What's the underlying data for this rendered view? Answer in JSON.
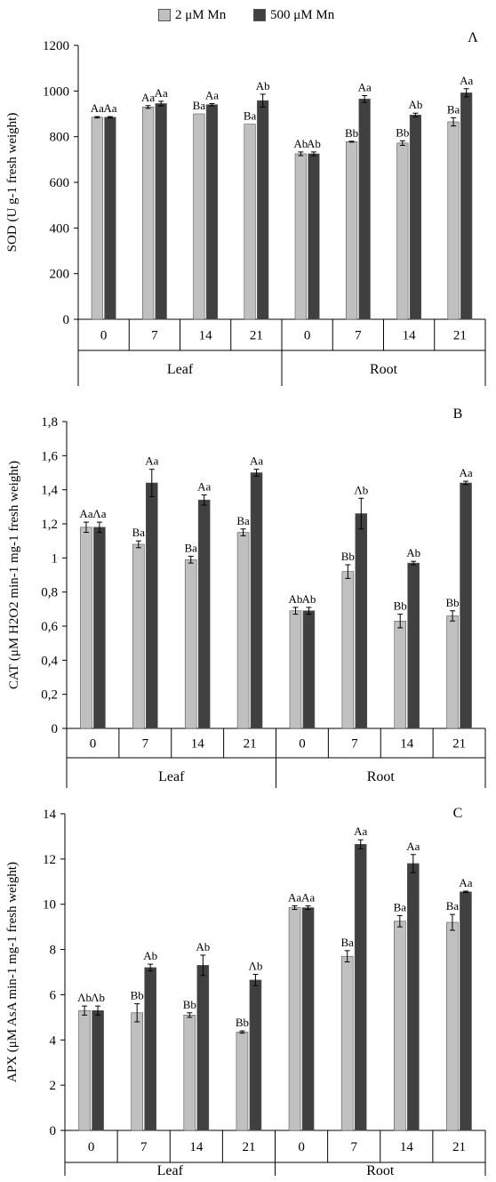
{
  "legend": [
    {
      "label": "2 μM Mn",
      "color": "#c0c0c0"
    },
    {
      "label": "500 μM Mn",
      "color": "#404040"
    }
  ],
  "colors": {
    "low": "#c0c0c0",
    "high": "#404040",
    "axis": "#000000"
  },
  "chart_data": [
    {
      "type": "bar",
      "panel": "Λ",
      "ylabel": "SOD (U g-1 fresh weight)",
      "ylim": [
        0,
        1200
      ],
      "yticks": [
        "0",
        "200",
        "400",
        "600",
        "800",
        "1000",
        "1200"
      ],
      "tick_values": [
        0,
        200,
        400,
        600,
        800,
        1000,
        1200
      ],
      "categories": [
        "0",
        "7",
        "14",
        "21",
        "0",
        "7",
        "14",
        "21"
      ],
      "groups": [
        "Leaf",
        "Root"
      ],
      "series": [
        {
          "name": "2 μM Mn",
          "values": [
            885,
            930,
            900,
            855,
            725,
            778,
            772,
            865
          ],
          "errors": [
            3,
            6,
            0,
            0,
            8,
            2,
            10,
            18
          ],
          "labels": [
            "Aa",
            "Aa",
            "Ba",
            "Ba",
            "Ab",
            "Bb",
            "Bb",
            "Ba"
          ]
        },
        {
          "name": "500 μM Mn",
          "values": [
            885,
            945,
            940,
            958,
            725,
            965,
            895,
            992
          ],
          "errors": [
            3,
            10,
            5,
            28,
            8,
            15,
            8,
            18
          ],
          "labels": [
            "Aa",
            "Aa",
            "Aa",
            "Ab",
            "Ab",
            "Aa",
            "Ab",
            "Aa"
          ]
        }
      ]
    },
    {
      "type": "bar",
      "panel": "B",
      "ylabel": "CAT (μM H2O2 min-1 mg-1 fresh weight)",
      "ylim": [
        0,
        1.8
      ],
      "yticks": [
        "0",
        "0,2",
        "0,4",
        "0,6",
        "0,8",
        "1",
        "1,2",
        "1,4",
        "1,6",
        "1,8"
      ],
      "tick_values": [
        0,
        0.2,
        0.4,
        0.6,
        0.8,
        1,
        1.2,
        1.4,
        1.6,
        1.8
      ],
      "categories": [
        "0",
        "7",
        "14",
        "21",
        "0",
        "7",
        "14",
        "21"
      ],
      "groups": [
        "Leaf",
        "Root"
      ],
      "series": [
        {
          "name": "2 μM Mn",
          "values": [
            1.18,
            1.08,
            0.99,
            1.15,
            0.69,
            0.92,
            0.63,
            0.66
          ],
          "errors": [
            0.03,
            0.02,
            0.02,
            0.02,
            0.02,
            0.04,
            0.04,
            0.03
          ],
          "labels": [
            "Aa",
            "Ba",
            "Ba",
            "Ba",
            "Ab",
            "Bb",
            "Bb",
            "Bb"
          ]
        },
        {
          "name": "500 μM Mn",
          "values": [
            1.18,
            1.44,
            1.34,
            1.5,
            0.69,
            1.26,
            0.97,
            1.44
          ],
          "errors": [
            0.03,
            0.08,
            0.03,
            0.02,
            0.02,
            0.09,
            0.01,
            0.01
          ],
          "labels": [
            "Λa",
            "Aa",
            "Aa",
            "Aa",
            "Ab",
            "Λb",
            "Ab",
            "Aa"
          ]
        }
      ]
    },
    {
      "type": "bar",
      "panel": "C",
      "ylabel": "APX (μM AsA min-1 mg-1 fresh weight)",
      "ylim": [
        0,
        14
      ],
      "yticks": [
        "0",
        "2",
        "4",
        "6",
        "8",
        "10",
        "12",
        "14"
      ],
      "tick_values": [
        0,
        2,
        4,
        6,
        8,
        10,
        12,
        14
      ],
      "categories": [
        "0",
        "7",
        "14",
        "21",
        "0",
        "7",
        "14",
        "21"
      ],
      "groups": [
        "Leaf",
        "Root"
      ],
      "series": [
        {
          "name": "2 μM Mn",
          "values": [
            5.3,
            5.2,
            5.1,
            4.35,
            9.85,
            7.7,
            9.25,
            9.2
          ],
          "errors": [
            0.2,
            0.4,
            0.1,
            0.05,
            0.08,
            0.25,
            0.25,
            0.35
          ],
          "labels": [
            "Λb",
            "Bb",
            "Bb",
            "Bb",
            "Aa",
            "Ba",
            "Ba",
            "Ba"
          ]
        },
        {
          "name": "500 μM Mn",
          "values": [
            5.3,
            7.2,
            7.3,
            6.65,
            9.85,
            12.65,
            11.8,
            10.55
          ],
          "errors": [
            0.2,
            0.15,
            0.45,
            0.25,
            0.08,
            0.2,
            0.4,
            0.03
          ],
          "labels": [
            "Λb",
            "Ab",
            "Ab",
            "Λb",
            "Aa",
            "Aa",
            "Aa",
            "Aa"
          ]
        }
      ]
    }
  ]
}
